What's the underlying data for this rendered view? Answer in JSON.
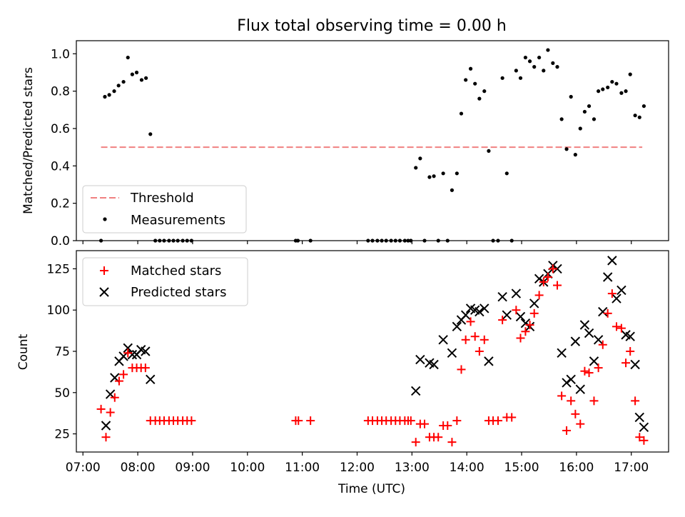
{
  "colors": {
    "matched": "#ff0000",
    "predicted": "#000000",
    "threshold": "#f08080",
    "measure": "#000000",
    "axis": "#000000"
  },
  "chart_data": {
    "title": "Flux total observing time = 0.00 h",
    "xlabel": "Time (UTC)",
    "x_tick_labels": [
      "07:00",
      "08:00",
      "09:00",
      "10:00",
      "11:00",
      "12:00",
      "13:00",
      "14:00",
      "15:00",
      "16:00",
      "17:00"
    ],
    "x_tick_hours": [
      7,
      8,
      9,
      10,
      11,
      12,
      13,
      14,
      15,
      16,
      17
    ],
    "xlim": [
      6.88,
      17.68
    ],
    "top": {
      "type": "scatter",
      "ylabel": "Matched/Predicted stars",
      "ylim": [
        0,
        1.07
      ],
      "y_ticks": [
        0.0,
        0.2,
        0.4,
        0.6,
        0.8,
        1.0
      ],
      "y_tick_labels": [
        "0.0",
        "0.2",
        "0.4",
        "0.6",
        "0.8",
        "1.0"
      ],
      "threshold": {
        "value": 0.5,
        "x_range": [
          7.33,
          17.2
        ],
        "label": "Threshold"
      },
      "measurements_label": "Measurements",
      "measurements": [
        [
          7.33,
          0
        ],
        [
          7.4,
          0.77
        ],
        [
          7.48,
          0.78
        ],
        [
          7.57,
          0.8
        ],
        [
          7.65,
          0.83
        ],
        [
          7.74,
          0.85
        ],
        [
          7.82,
          0.98
        ],
        [
          7.9,
          0.89
        ],
        [
          7.98,
          0.9
        ],
        [
          8.07,
          0.86
        ],
        [
          8.15,
          0.87
        ],
        [
          8.23,
          0.57
        ],
        [
          8.32,
          0
        ],
        [
          8.4,
          0
        ],
        [
          8.48,
          0
        ],
        [
          8.57,
          0
        ],
        [
          8.65,
          0
        ],
        [
          8.73,
          0
        ],
        [
          8.82,
          0
        ],
        [
          8.9,
          0
        ],
        [
          8.98,
          0
        ],
        [
          10.88,
          0
        ],
        [
          10.92,
          0
        ],
        [
          11.15,
          0
        ],
        [
          12.2,
          0
        ],
        [
          12.28,
          0
        ],
        [
          12.37,
          0
        ],
        [
          12.45,
          0
        ],
        [
          12.53,
          0
        ],
        [
          12.62,
          0
        ],
        [
          12.7,
          0
        ],
        [
          12.78,
          0
        ],
        [
          12.87,
          0
        ],
        [
          12.93,
          0
        ],
        [
          12.98,
          0
        ],
        [
          13.07,
          0.39
        ],
        [
          13.15,
          0.44
        ],
        [
          13.23,
          0
        ],
        [
          13.32,
          0.34
        ],
        [
          13.4,
          0.345
        ],
        [
          13.48,
          0
        ],
        [
          13.57,
          0.36
        ],
        [
          13.65,
          0
        ],
        [
          13.73,
          0.27
        ],
        [
          13.82,
          0.36
        ],
        [
          13.9,
          0.68
        ],
        [
          13.98,
          0.86
        ],
        [
          14.07,
          0.92
        ],
        [
          14.15,
          0.84
        ],
        [
          14.23,
          0.76
        ],
        [
          14.32,
          0.8
        ],
        [
          14.4,
          0.48
        ],
        [
          14.48,
          0
        ],
        [
          14.57,
          0
        ],
        [
          14.65,
          0.87
        ],
        [
          14.73,
          0.36
        ],
        [
          14.82,
          0
        ],
        [
          14.9,
          0.91
        ],
        [
          14.98,
          0.87
        ],
        [
          15.07,
          0.98
        ],
        [
          15.15,
          0.96
        ],
        [
          15.23,
          0.93
        ],
        [
          15.32,
          0.98
        ],
        [
          15.4,
          0.91
        ],
        [
          15.48,
          1.02
        ],
        [
          15.57,
          0.95
        ],
        [
          15.65,
          0.93
        ],
        [
          15.73,
          0.65
        ],
        [
          15.82,
          0.49
        ],
        [
          15.9,
          0.77
        ],
        [
          15.98,
          0.46
        ],
        [
          16.07,
          0.6
        ],
        [
          16.15,
          0.69
        ],
        [
          16.23,
          0.72
        ],
        [
          16.32,
          0.65
        ],
        [
          16.4,
          0.8
        ],
        [
          16.48,
          0.81
        ],
        [
          16.57,
          0.82
        ],
        [
          16.65,
          0.85
        ],
        [
          16.73,
          0.84
        ],
        [
          16.82,
          0.79
        ],
        [
          16.9,
          0.8
        ],
        [
          16.98,
          0.89
        ],
        [
          17.07,
          0.67
        ],
        [
          17.15,
          0.66
        ],
        [
          17.23,
          0.72
        ]
      ]
    },
    "bottom": {
      "type": "scatter",
      "ylabel": "Count",
      "ylim": [
        14,
        136
      ],
      "y_ticks": [
        25,
        50,
        75,
        100,
        125
      ],
      "y_tick_labels": [
        "25",
        "50",
        "75",
        "100",
        "125"
      ],
      "series": [
        {
          "name": "Matched stars",
          "marker": "plus",
          "points": [
            [
              7.33,
              40
            ],
            [
              7.42,
              23
            ],
            [
              7.5,
              38
            ],
            [
              7.58,
              47
            ],
            [
              7.66,
              57
            ],
            [
              7.74,
              61
            ],
            [
              7.82,
              74
            ],
            [
              7.9,
              65
            ],
            [
              7.98,
              65
            ],
            [
              8.06,
              65
            ],
            [
              8.14,
              65
            ],
            [
              8.23,
              33
            ],
            [
              8.32,
              33
            ],
            [
              8.4,
              33
            ],
            [
              8.48,
              33
            ],
            [
              8.57,
              33
            ],
            [
              8.65,
              33
            ],
            [
              8.73,
              33
            ],
            [
              8.82,
              33
            ],
            [
              8.9,
              33
            ],
            [
              8.98,
              33
            ],
            [
              10.88,
              33
            ],
            [
              10.93,
              33
            ],
            [
              11.15,
              33
            ],
            [
              12.2,
              33
            ],
            [
              12.28,
              33
            ],
            [
              12.37,
              33
            ],
            [
              12.45,
              33
            ],
            [
              12.53,
              33
            ],
            [
              12.62,
              33
            ],
            [
              12.7,
              33
            ],
            [
              12.78,
              33
            ],
            [
              12.87,
              33
            ],
            [
              12.93,
              33
            ],
            [
              12.98,
              33
            ],
            [
              13.07,
              20
            ],
            [
              13.15,
              31
            ],
            [
              13.23,
              31
            ],
            [
              13.32,
              23
            ],
            [
              13.4,
              23
            ],
            [
              13.48,
              23
            ],
            [
              13.57,
              30
            ],
            [
              13.65,
              30
            ],
            [
              13.73,
              20
            ],
            [
              13.82,
              33
            ],
            [
              13.9,
              64
            ],
            [
              13.98,
              82
            ],
            [
              14.07,
              93
            ],
            [
              14.15,
              84
            ],
            [
              14.23,
              75
            ],
            [
              14.32,
              82
            ],
            [
              14.4,
              33
            ],
            [
              14.48,
              33
            ],
            [
              14.57,
              33
            ],
            [
              14.65,
              94
            ],
            [
              14.73,
              35
            ],
            [
              14.82,
              35
            ],
            [
              14.9,
              100
            ],
            [
              14.98,
              83
            ],
            [
              15.07,
              87
            ],
            [
              15.15,
              91
            ],
            [
              15.23,
              98
            ],
            [
              15.32,
              109
            ],
            [
              15.4,
              117
            ],
            [
              15.48,
              120
            ],
            [
              15.57,
              125
            ],
            [
              15.65,
              115
            ],
            [
              15.73,
              48
            ],
            [
              15.82,
              27
            ],
            [
              15.9,
              45
            ],
            [
              15.98,
              37
            ],
            [
              16.07,
              31
            ],
            [
              16.15,
              63
            ],
            [
              16.23,
              62
            ],
            [
              16.32,
              45
            ],
            [
              16.4,
              65
            ],
            [
              16.48,
              79
            ],
            [
              16.57,
              98
            ],
            [
              16.65,
              110
            ],
            [
              16.73,
              90
            ],
            [
              16.82,
              89
            ],
            [
              16.9,
              68
            ],
            [
              16.98,
              75
            ],
            [
              17.07,
              45
            ],
            [
              17.15,
              23
            ],
            [
              17.23,
              21
            ]
          ]
        },
        {
          "name": "Predicted stars",
          "marker": "x",
          "points": [
            [
              7.42,
              30
            ],
            [
              7.5,
              49
            ],
            [
              7.58,
              59
            ],
            [
              7.66,
              69
            ],
            [
              7.74,
              72
            ],
            [
              7.82,
              77
            ],
            [
              7.9,
              73
            ],
            [
              7.98,
              73
            ],
            [
              8.06,
              76
            ],
            [
              8.14,
              75
            ],
            [
              8.23,
              58
            ],
            [
              13.07,
              51
            ],
            [
              13.15,
              70
            ],
            [
              13.32,
              68
            ],
            [
              13.4,
              67
            ],
            [
              13.57,
              82
            ],
            [
              13.73,
              74
            ],
            [
              13.82,
              90
            ],
            [
              13.9,
              94
            ],
            [
              13.98,
              97
            ],
            [
              14.07,
              101
            ],
            [
              14.15,
              100
            ],
            [
              14.23,
              99
            ],
            [
              14.32,
              101
            ],
            [
              14.4,
              69
            ],
            [
              14.65,
              108
            ],
            [
              14.73,
              97
            ],
            [
              14.9,
              110
            ],
            [
              14.98,
              96
            ],
            [
              15.07,
              92
            ],
            [
              15.15,
              90
            ],
            [
              15.23,
              104
            ],
            [
              15.32,
              119
            ],
            [
              15.4,
              117
            ],
            [
              15.48,
              122
            ],
            [
              15.57,
              127
            ],
            [
              15.65,
              125
            ],
            [
              15.73,
              74
            ],
            [
              15.82,
              56
            ],
            [
              15.9,
              58
            ],
            [
              15.98,
              81
            ],
            [
              16.07,
              52
            ],
            [
              16.15,
              91
            ],
            [
              16.23,
              86
            ],
            [
              16.32,
              69
            ],
            [
              16.4,
              82
            ],
            [
              16.48,
              99
            ],
            [
              16.57,
              120
            ],
            [
              16.65,
              130
            ],
            [
              16.73,
              107
            ],
            [
              16.82,
              112
            ],
            [
              16.9,
              85
            ],
            [
              16.98,
              84
            ],
            [
              17.07,
              67
            ],
            [
              17.15,
              35
            ],
            [
              17.23,
              29
            ]
          ]
        }
      ]
    }
  }
}
